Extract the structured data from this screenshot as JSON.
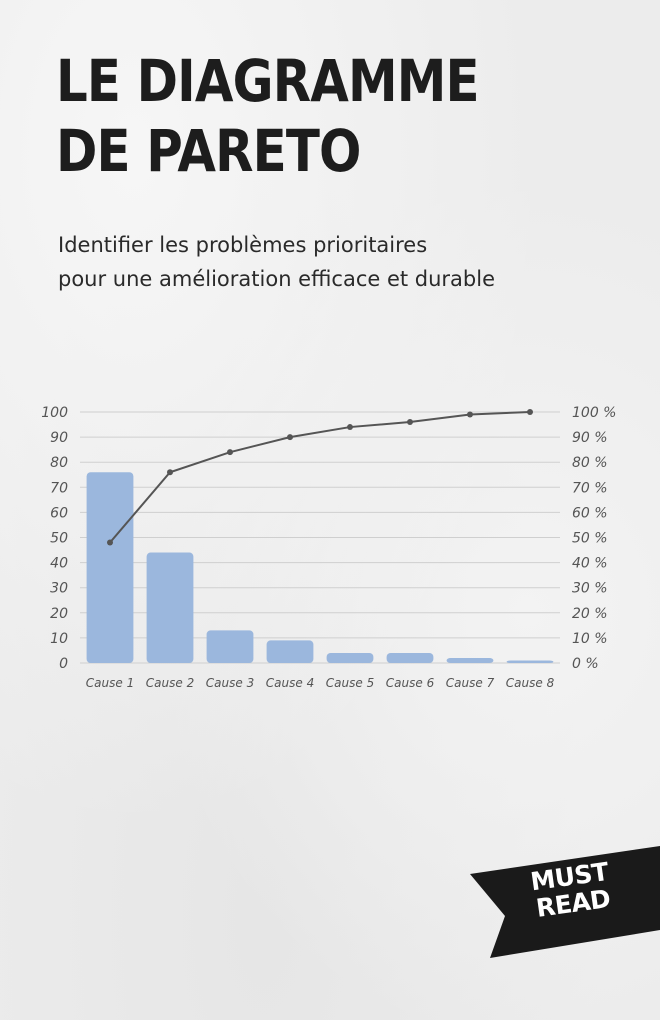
{
  "cover": {
    "title_line1": "LE DIAGRAMME",
    "title_line2": "DE PARETO",
    "subtitle_line1": "Identifier les problèmes prioritaires",
    "subtitle_line2": "pour une amélioration efficace et durable",
    "badge_line1": "MUST",
    "badge_line2": "READ"
  },
  "colors": {
    "bar": "#9bb7dd",
    "line": "#555555",
    "grid": "#cfcfcf",
    "badge": "#1a1a1a"
  },
  "chart_data": {
    "type": "bar",
    "categories": [
      "Cause 1",
      "Cause 2",
      "Cause 3",
      "Cause 4",
      "Cause 5",
      "Cause 6",
      "Cause 7",
      "Cause 8"
    ],
    "series": [
      {
        "type": "bar",
        "values": [
          76,
          44,
          13,
          9,
          4,
          4,
          2,
          1
        ]
      },
      {
        "type": "line",
        "values": [
          48,
          76,
          84,
          90,
          94,
          96,
          99,
          100
        ]
      }
    ],
    "y_ticks": [
      "0",
      "10",
      "20",
      "30",
      "40",
      "50",
      "60",
      "70",
      "80",
      "90",
      "100"
    ],
    "y2_ticks": [
      "0 %",
      "10 %",
      "20 %",
      "30 %",
      "40 %",
      "50 %",
      "60 %",
      "70 %",
      "80 %",
      "90 %",
      "100 %"
    ],
    "ylim": [
      0,
      100
    ],
    "y2lim": [
      0,
      100
    ],
    "grid": true,
    "legend": "none"
  }
}
